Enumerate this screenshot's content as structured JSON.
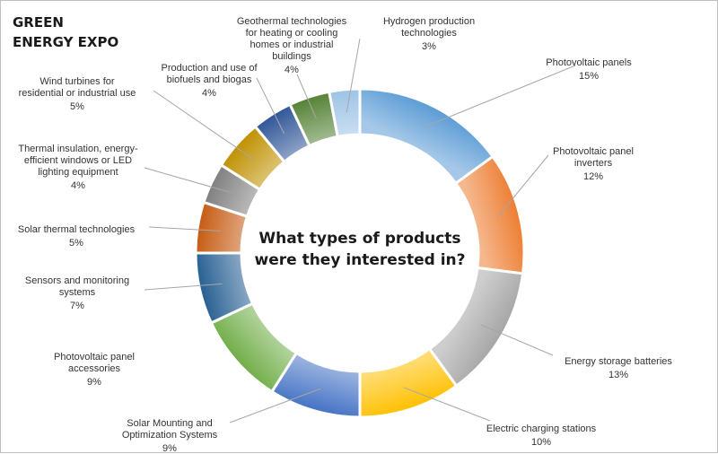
{
  "title_lines": [
    "GREEN",
    "ENERGY EXPO"
  ],
  "center_lines": [
    "What types of products",
    "were they interested in?"
  ],
  "chart_data": {
    "type": "pie",
    "donut": true,
    "title": "GREEN ENERGY EXPO",
    "subtitle": "What types of products were they interested in?",
    "legend": "none",
    "slices": [
      {
        "label": "Photovoltaic panels",
        "value": 15,
        "color": "#5b9bd5",
        "label_lines": [
          "Photovoltaic panels"
        ],
        "pct_label": "15%"
      },
      {
        "label": "Photovoltaic panel inverters",
        "value": 12,
        "color": "#ed7d31",
        "label_lines": [
          "Photovoltaic panel",
          "inverters"
        ],
        "pct_label": "12%"
      },
      {
        "label": "Energy storage batteries",
        "value": 13,
        "color": "#a5a5a5",
        "label_lines": [
          "Energy storage batteries"
        ],
        "pct_label": "13%"
      },
      {
        "label": "Electric charging stations",
        "value": 10,
        "color": "#ffc000",
        "label_lines": [
          "Electric charging stations"
        ],
        "pct_label": "10%"
      },
      {
        "label": "Solar Mounting and Optimization Systems",
        "value": 9,
        "color": "#4472c4",
        "label_lines": [
          "Solar Mounting and",
          "Optimization Systems"
        ],
        "pct_label": "9%"
      },
      {
        "label": "Photovoltaic panel accessories",
        "value": 9,
        "color": "#70ad47",
        "label_lines": [
          "Photovoltaic panel",
          "accessories"
        ],
        "pct_label": "9%"
      },
      {
        "label": "Sensors and monitoring systems",
        "value": 7,
        "color": "#255e91",
        "label_lines": [
          "Sensors and monitoring",
          "systems"
        ],
        "pct_label": "7%"
      },
      {
        "label": "Solar thermal technologies",
        "value": 5,
        "color": "#c55a11",
        "label_lines": [
          "Solar thermal technologies"
        ],
        "pct_label": "5%"
      },
      {
        "label": "Thermal insulation, energy-efficient windows or LED lighting equipment",
        "value": 4,
        "color": "#7f7f7f",
        "label_lines": [
          "Thermal insulation, energy-",
          "efficient windows or LED",
          "lighting equipment"
        ],
        "pct_label": "4%"
      },
      {
        "label": "Wind turbines for residential or industrial use",
        "value": 5,
        "color": "#bf9000",
        "label_lines": [
          "Wind turbines for",
          "residential or industrial use"
        ],
        "pct_label": "5%"
      },
      {
        "label": "Production and use of biofuels and biogas",
        "value": 4,
        "color": "#2f5597",
        "label_lines": [
          "Production and use of",
          "biofuels and biogas"
        ],
        "pct_label": "4%"
      },
      {
        "label": "Geothermal technologies for heating or cooling homes or industrial buildings",
        "value": 4,
        "color": "#548235",
        "label_lines": [
          "Geothermal technologies",
          "for heating or cooling",
          "homes or industrial",
          "buildings"
        ],
        "pct_label": "4%"
      },
      {
        "label": "Hydrogen production technologies",
        "value": 3,
        "color": "#9dc3e6",
        "label_lines": [
          "Hydrogen production",
          "technologies"
        ],
        "pct_label": "3%"
      }
    ]
  }
}
